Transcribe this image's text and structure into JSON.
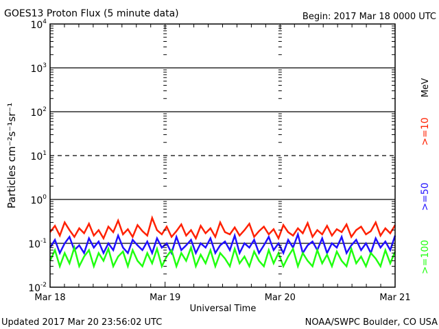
{
  "chart_data": {
    "type": "line",
    "title": "GOES13 Proton Flux (5 minute data)",
    "subtitle": "Begin: 2017 Mar 18 0000 UTC",
    "xlabel": "Universal Time",
    "ylabel": "Particles cm⁻²s⁻¹sr⁻¹",
    "yscale": "log",
    "ylim": [
      0.01,
      10000
    ],
    "xlim_days": [
      0,
      3
    ],
    "x_tick_labels": [
      "Mar 18",
      "Mar 19",
      "Mar 20",
      "Mar 21"
    ],
    "y_tick_labels": [
      {
        "base": "10",
        "exp": "4",
        "value": 10000
      },
      {
        "base": "10",
        "exp": "3",
        "value": 1000
      },
      {
        "base": "10",
        "exp": "2",
        "value": 100
      },
      {
        "base": "10",
        "exp": "1",
        "value": 10
      },
      {
        "base": "10",
        "exp": "0",
        "value": 1
      },
      {
        "base": "10",
        "exp": "-1",
        "value": 0.1
      },
      {
        "base": "10",
        "exp": "-2",
        "value": 0.01
      }
    ],
    "reference_lines": [
      {
        "value": 1000,
        "style": "solid"
      },
      {
        "value": 100,
        "style": "solid"
      },
      {
        "value": 10,
        "style": "dashed"
      },
      {
        "value": 1,
        "style": "solid"
      },
      {
        "value": 0.1,
        "style": "solid"
      }
    ],
    "legend_unit": "MeV",
    "series": [
      {
        "name": ">=10",
        "color": "#ff2000",
        "values": [
          0.18,
          0.25,
          0.15,
          0.3,
          0.2,
          0.14,
          0.22,
          0.17,
          0.28,
          0.15,
          0.2,
          0.13,
          0.24,
          0.18,
          0.33,
          0.16,
          0.21,
          0.14,
          0.26,
          0.19,
          0.15,
          0.38,
          0.2,
          0.16,
          0.24,
          0.14,
          0.19,
          0.27,
          0.15,
          0.2,
          0.13,
          0.25,
          0.17,
          0.22,
          0.14,
          0.3,
          0.18,
          0.16,
          0.23,
          0.15,
          0.2,
          0.28,
          0.14,
          0.19,
          0.24,
          0.16,
          0.21,
          0.13,
          0.26,
          0.18,
          0.15,
          0.22,
          0.17,
          0.29,
          0.14,
          0.2,
          0.16,
          0.25,
          0.15,
          0.21,
          0.18,
          0.27,
          0.14,
          0.2,
          0.24,
          0.16,
          0.19,
          0.3,
          0.15,
          0.22,
          0.17,
          0.26
        ]
      },
      {
        "name": ">=50",
        "color": "#2010ff",
        "values": [
          0.08,
          0.12,
          0.06,
          0.1,
          0.14,
          0.07,
          0.09,
          0.06,
          0.13,
          0.08,
          0.11,
          0.06,
          0.1,
          0.07,
          0.15,
          0.08,
          0.06,
          0.12,
          0.09,
          0.07,
          0.11,
          0.06,
          0.13,
          0.08,
          0.1,
          0.06,
          0.14,
          0.07,
          0.09,
          0.12,
          0.06,
          0.1,
          0.08,
          0.13,
          0.06,
          0.09,
          0.11,
          0.07,
          0.15,
          0.06,
          0.1,
          0.08,
          0.12,
          0.06,
          0.09,
          0.14,
          0.07,
          0.1,
          0.06,
          0.12,
          0.08,
          0.16,
          0.06,
          0.09,
          0.11,
          0.07,
          0.13,
          0.06,
          0.1,
          0.08,
          0.14,
          0.06,
          0.09,
          0.12,
          0.07,
          0.1,
          0.06,
          0.13,
          0.08,
          0.11,
          0.07,
          0.15
        ]
      },
      {
        "name": ">=100",
        "color": "#20ff10",
        "values": [
          0.04,
          0.07,
          0.03,
          0.06,
          0.035,
          0.08,
          0.03,
          0.05,
          0.07,
          0.03,
          0.06,
          0.04,
          0.075,
          0.03,
          0.05,
          0.065,
          0.03,
          0.07,
          0.04,
          0.03,
          0.06,
          0.035,
          0.075,
          0.03,
          0.05,
          0.07,
          0.03,
          0.06,
          0.04,
          0.08,
          0.03,
          0.055,
          0.035,
          0.07,
          0.03,
          0.06,
          0.045,
          0.03,
          0.075,
          0.035,
          0.05,
          0.03,
          0.065,
          0.04,
          0.03,
          0.07,
          0.035,
          0.06,
          0.03,
          0.05,
          0.075,
          0.03,
          0.06,
          0.04,
          0.03,
          0.07,
          0.035,
          0.055,
          0.03,
          0.065,
          0.04,
          0.03,
          0.075,
          0.035,
          0.05,
          0.03,
          0.06,
          0.045,
          0.03,
          0.07,
          0.035,
          0.065
        ]
      }
    ]
  },
  "footer": {
    "updated": "Updated 2017 Mar 20 23:56:02 UTC",
    "credit": "NOAA/SWPC Boulder, CO USA"
  }
}
